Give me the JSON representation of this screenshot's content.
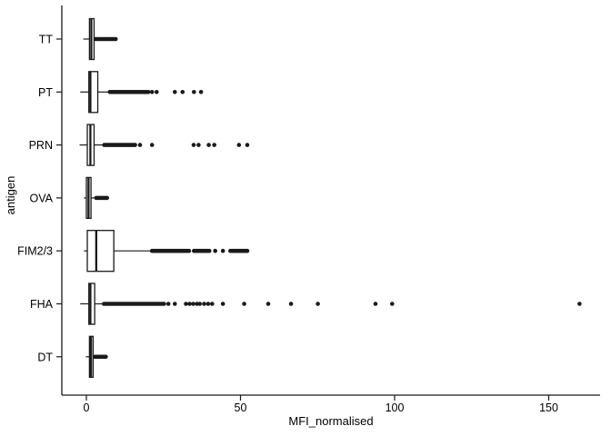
{
  "chart_data": {
    "type": "boxplot",
    "orientation": "horizontal",
    "title": "",
    "xlabel": "MFI_normalised",
    "ylabel": "antigen",
    "x_ticks": [
      0,
      50,
      100,
      150
    ],
    "x_range": [
      -8,
      167
    ],
    "grid": false,
    "legend": "none",
    "categories_top_to_bottom": [
      "TT",
      "PT",
      "PRN",
      "OVA",
      "FIM2/3",
      "FHA",
      "DT"
    ],
    "series": [
      {
        "category": "TT",
        "whisker_low": -1.0,
        "q1": 1.0,
        "median": 1.6,
        "q3": 2.5,
        "whisker_high": 2.8,
        "outlier_dense_ranges": [
          [
            3.0,
            9.5
          ]
        ],
        "outliers": []
      },
      {
        "category": "PT",
        "whisker_low": -2.0,
        "q1": 0.8,
        "median": 1.3,
        "q3": 3.7,
        "whisker_high": 7.4,
        "outlier_dense_ranges": [
          [
            7.6,
            20.4
          ]
        ],
        "outliers": [
          21.3,
          22.8,
          28.7,
          31.2,
          34.9,
          37.2
        ]
      },
      {
        "category": "PRN",
        "whisker_low": -2.2,
        "q1": 0.3,
        "median": 1.3,
        "q3": 2.5,
        "whisker_high": 5.6,
        "outlier_dense_ranges": [
          [
            5.8,
            16.2
          ]
        ],
        "outliers": [
          17.4,
          21.3,
          34.8,
          36.4,
          39.7,
          41.5,
          49.5,
          52.2
        ]
      },
      {
        "category": "OVA",
        "whisker_low": -0.8,
        "q1": 0.0,
        "median": 0.7,
        "q3": 1.5,
        "whisker_high": 3.0,
        "outlier_dense_ranges": [
          [
            3.2,
            6.9
          ]
        ],
        "outliers": []
      },
      {
        "category": "FIM2/3",
        "whisker_low": -0.8,
        "q1": 0.3,
        "median": 3.2,
        "q3": 8.9,
        "whisker_high": 21.2,
        "outlier_dense_ranges": [
          [
            21.3,
            33.4
          ],
          [
            34.9,
            40.3
          ],
          [
            46.7,
            52.2
          ]
        ],
        "outliers": [
          41.8,
          44.3
        ]
      },
      {
        "category": "FHA",
        "whisker_low": -2.0,
        "q1": 0.8,
        "median": 1.3,
        "q3": 2.7,
        "whisker_high": 5.5,
        "outlier_dense_ranges": [
          [
            5.7,
            25.6
          ]
        ],
        "outliers": [
          26.6,
          28.7,
          32.3,
          33.5,
          34.7,
          35.9,
          36.8,
          38.2,
          39.5,
          40.8,
          44.3,
          51.2,
          59.0,
          66.4,
          75.1,
          93.8,
          99.2,
          160.0
        ]
      },
      {
        "category": "DT",
        "whisker_low": -0.2,
        "q1": 1.0,
        "median": 1.5,
        "q3": 2.2,
        "whisker_high": 2.5,
        "outlier_dense_ranges": [
          [
            2.8,
            6.7
          ]
        ],
        "outliers": []
      }
    ],
    "colors": {
      "stroke": "#1a1a1a",
      "box_fill": "#ffffff",
      "background": "#ffffff"
    }
  }
}
